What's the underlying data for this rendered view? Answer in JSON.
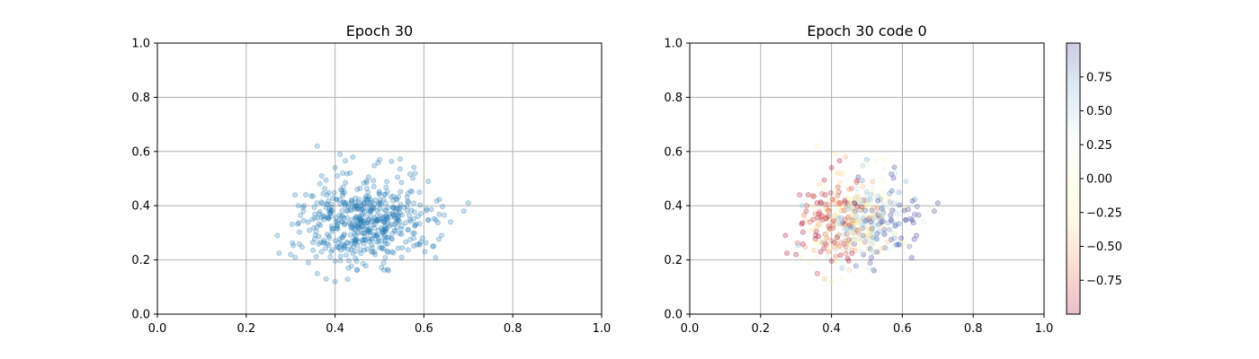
{
  "chart_data": [
    {
      "type": "scatter",
      "title": "Epoch 30",
      "xlabel": "",
      "ylabel": "",
      "xlim": [
        0.0,
        1.0
      ],
      "ylim": [
        0.0,
        1.0
      ],
      "xticks": [
        "0.0",
        "0.2",
        "0.4",
        "0.6",
        "0.8",
        "1.0"
      ],
      "yticks": [
        "0.0",
        "0.2",
        "0.4",
        "0.6",
        "0.8",
        "1.0"
      ],
      "grid": true,
      "marker_color": "#1f77b4",
      "marker_alpha": 0.25,
      "distribution": {
        "center": [
          0.47,
          0.34
        ],
        "spread": [
          0.07,
          0.08
        ],
        "count": 520
      },
      "points": [
        [
          0.36,
          0.62
        ],
        [
          0.27,
          0.29
        ],
        [
          0.7,
          0.41
        ],
        [
          0.69,
          0.38
        ],
        [
          0.61,
          0.49
        ],
        [
          0.38,
          0.13
        ],
        [
          0.4,
          0.12
        ],
        [
          0.3,
          0.22
        ],
        [
          0.31,
          0.21
        ],
        [
          0.36,
          0.15
        ],
        [
          0.44,
          0.58
        ],
        [
          0.5,
          0.57
        ],
        [
          0.58,
          0.52
        ],
        [
          0.34,
          0.19
        ],
        [
          0.64,
          0.29
        ],
        [
          0.62,
          0.25
        ],
        [
          0.66,
          0.34
        ],
        [
          0.31,
          0.44
        ],
        [
          0.33,
          0.4
        ],
        [
          0.55,
          0.21
        ],
        [
          0.52,
          0.16
        ],
        [
          0.43,
          0.17
        ],
        [
          0.59,
          0.45
        ],
        [
          0.4,
          0.54
        ],
        [
          0.37,
          0.51
        ]
      ]
    },
    {
      "type": "scatter",
      "title": "Epoch 30 code 0",
      "xlabel": "",
      "ylabel": "",
      "xlim": [
        0.0,
        1.0
      ],
      "ylim": [
        0.0,
        1.0
      ],
      "xticks": [
        "0.0",
        "0.2",
        "0.4",
        "0.6",
        "0.8",
        "1.0"
      ],
      "yticks": [
        "0.0",
        "0.2",
        "0.4",
        "0.6",
        "0.8",
        "1.0"
      ],
      "grid": true,
      "marker_alpha": 0.25,
      "colormap": "RdYlBu",
      "colorbar": {
        "range": [
          -1.0,
          1.0
        ],
        "ticks": [
          "-0.75",
          "-0.50",
          "-0.25",
          "0.00",
          "0.25",
          "0.50",
          "0.75"
        ],
        "tick_values": [
          -0.75,
          -0.5,
          -0.25,
          0.0,
          0.25,
          0.5,
          0.75
        ],
        "colors": [
          "#a50026",
          "#f46d43",
          "#fee090",
          "#ffffbf",
          "#e0f3f8",
          "#74add1",
          "#313695"
        ]
      },
      "distribution": {
        "center": [
          0.47,
          0.34
        ],
        "spread": [
          0.07,
          0.08
        ],
        "count": 520
      },
      "note_same_points_as_left": true
    }
  ]
}
